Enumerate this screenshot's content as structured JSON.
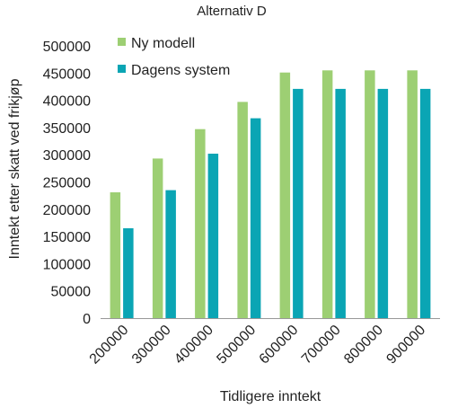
{
  "chart_data": {
    "type": "bar",
    "title": "Alternativ D",
    "xlabel": "Tidligere inntekt",
    "ylabel": "Inntekt etter skatt ved frikjøp",
    "categories": [
      "200000",
      "300000",
      "400000",
      "500000",
      "600000",
      "700000",
      "800000",
      "900000"
    ],
    "ylim": [
      0,
      500000
    ],
    "yticks": [
      0,
      50000,
      100000,
      150000,
      200000,
      250000,
      300000,
      350000,
      400000,
      450000,
      500000
    ],
    "grid": false,
    "legend": "top-left",
    "series": [
      {
        "name": "Ny modell",
        "color": "#9dcf73",
        "values": [
          231000,
          293000,
          347000,
          397000,
          451000,
          455000,
          455000,
          455000
        ]
      },
      {
        "name": "Dagens system",
        "color": "#0aa5b4",
        "values": [
          165000,
          235000,
          302000,
          367000,
          421000,
          421000,
          421000,
          421000
        ]
      }
    ]
  }
}
